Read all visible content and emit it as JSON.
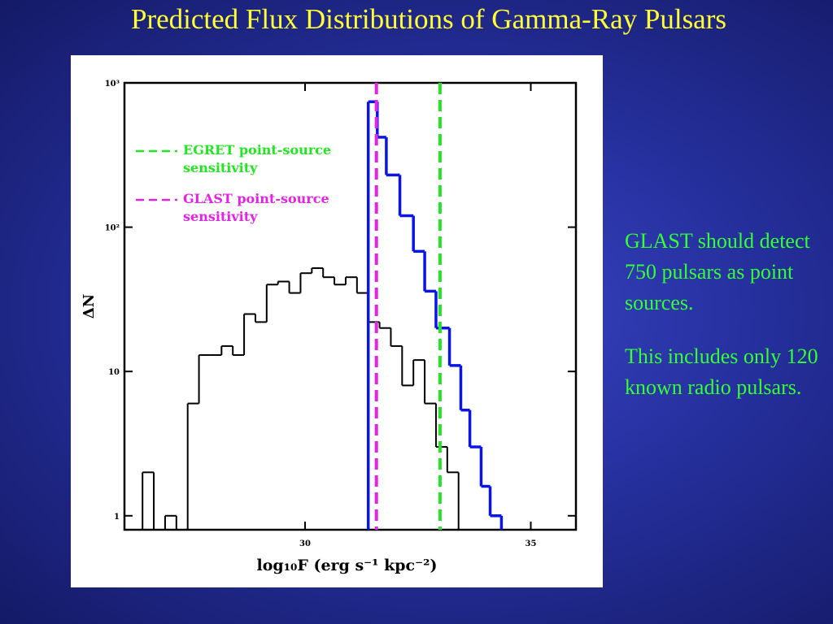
{
  "title": "Predicted Flux Distributions of Gamma-Ray Pulsars",
  "notes": [
    "GLAST should detect 750 pulsars as point sources.",
    "This includes only 120 known radio pulsars."
  ],
  "chart_data": {
    "type": "histogram",
    "log_y": true,
    "xlabel": "log₁₀F  (erg s⁻¹ kpc⁻²)",
    "ylabel": "ΔN",
    "xlim": [
      26,
      36
    ],
    "xticks": [
      30,
      35
    ],
    "ylim": [
      0.8,
      1000
    ],
    "yticks": [
      1,
      10,
      {
        "value": 100,
        "label": "10²"
      },
      {
        "value": 1000,
        "label": "10³"
      }
    ],
    "series": [
      {
        "color": "#000000",
        "bins": [
          26.4,
          26.65,
          26.9,
          27.15,
          27.4,
          27.65,
          27.9,
          28.15,
          28.4,
          28.65,
          28.9,
          29.15,
          29.4,
          29.65,
          29.9,
          30.15,
          30.4,
          30.65,
          30.9,
          31.15,
          31.4,
          31.65,
          31.9,
          32.15,
          32.4,
          32.65,
          32.9,
          33.15,
          33.4
        ],
        "values": [
          2,
          0,
          1,
          0,
          6,
          13,
          13,
          15,
          13,
          25,
          22,
          40,
          42,
          35,
          48,
          52,
          45,
          40,
          45,
          35,
          22,
          20,
          15,
          8,
          12,
          6,
          3,
          2
        ]
      },
      {
        "color": "#0a14e6",
        "bins": [
          31.4,
          31.6,
          31.8,
          32.1,
          32.4,
          32.65,
          32.9,
          33.2,
          33.45,
          33.65,
          33.9,
          34.1,
          34.35
        ],
        "values": [
          740,
          420,
          230,
          120,
          68,
          36,
          20,
          11,
          5.4,
          3,
          1.6,
          1
        ]
      }
    ],
    "vlines": [
      {
        "label_lines": [
          "EGRET point-source",
          "sensitivity"
        ],
        "x": 32.99,
        "color": "#22e622"
      },
      {
        "label_lines": [
          "GLAST point-source",
          "sensitivity"
        ],
        "x": 31.58,
        "color": "#e622e6"
      }
    ]
  }
}
